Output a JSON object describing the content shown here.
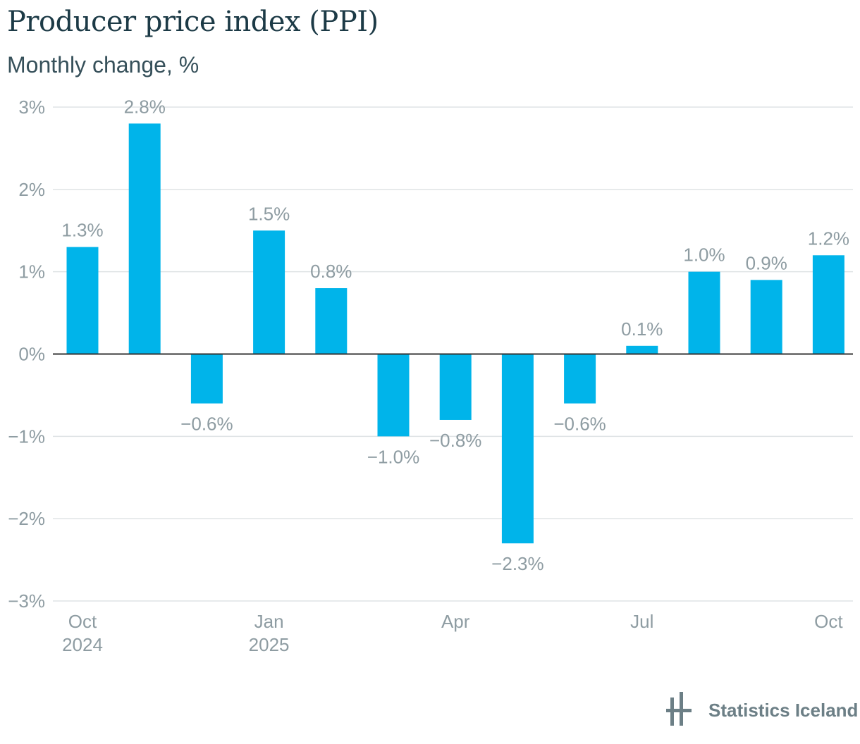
{
  "header": {
    "title": "Producer price index (PPI)",
    "subtitle": "Monthly change, %"
  },
  "chart_data": {
    "type": "bar",
    "title": "Producer price index (PPI)",
    "subtitle": "Monthly change, %",
    "categories": [
      "Oct 2024",
      "Nov 2024",
      "Dec 2024",
      "Jan 2025",
      "Feb 2025",
      "Mar 2025",
      "Apr 2025",
      "May 2025",
      "Jun 2025",
      "Jul 2025",
      "Aug 2025",
      "Sep 2025",
      "Oct 2025"
    ],
    "values": [
      1.3,
      2.8,
      -0.6,
      1.5,
      0.8,
      -1.0,
      -0.8,
      -2.3,
      -0.6,
      0.1,
      1.0,
      0.9,
      1.2
    ],
    "value_labels": [
      "1.3%",
      "2.8%",
      "−0.6%",
      "1.5%",
      "0.8%",
      "−1.0%",
      "−0.8%",
      "−2.3%",
      "−0.6%",
      "0.1%",
      "1.0%",
      "0.9%",
      "1.2%"
    ],
    "ylim": [
      -3,
      3
    ],
    "y_ticks": [
      {
        "value": 3,
        "label": "3%"
      },
      {
        "value": 2,
        "label": "2%"
      },
      {
        "value": 1,
        "label": "1%"
      },
      {
        "value": 0,
        "label": "0%"
      },
      {
        "value": -1,
        "label": "−1%"
      },
      {
        "value": -2,
        "label": "−2%"
      },
      {
        "value": -3,
        "label": "−3%"
      }
    ],
    "x_ticks": [
      {
        "index": 0,
        "line1": "Oct",
        "line2": "2024"
      },
      {
        "index": 3,
        "line1": "Jan",
        "line2": "2025"
      },
      {
        "index": 6,
        "line1": "Apr",
        "line2": ""
      },
      {
        "index": 9,
        "line1": "Jul",
        "line2": ""
      },
      {
        "index": 12,
        "line1": "Oct",
        "line2": ""
      }
    ],
    "bar_color": "#00b4ea",
    "grid": true
  },
  "branding": {
    "name": "Statistics Iceland",
    "logo_icon": "statistics-iceland-logo-icon",
    "color": "#6c7f86"
  }
}
